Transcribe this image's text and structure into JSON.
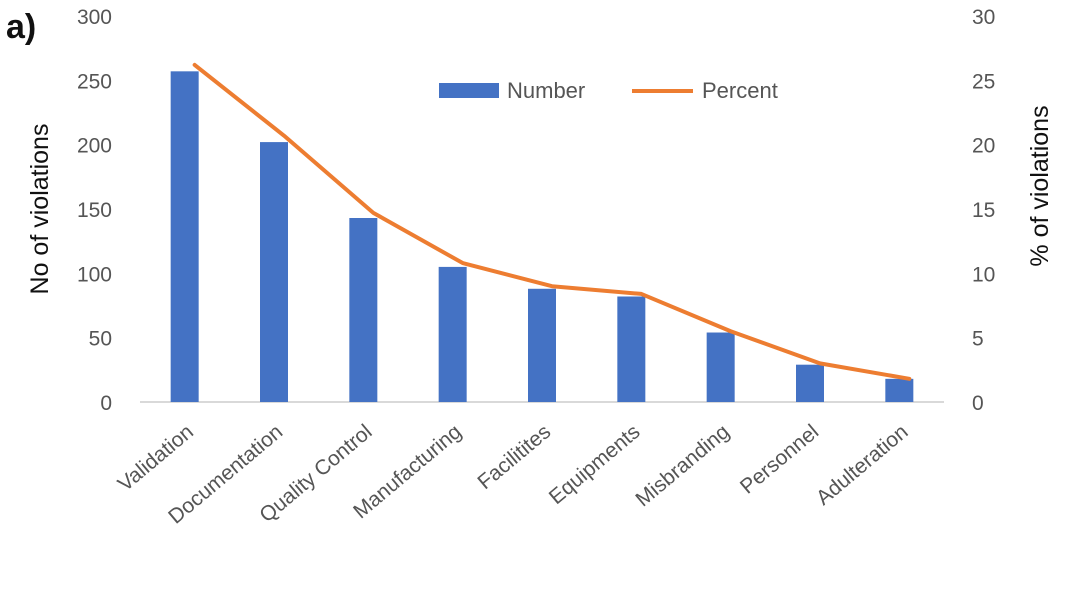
{
  "panel_label": "a)",
  "chart_data": {
    "type": "bar",
    "categories": [
      "Validation",
      "Documentation",
      "Quality Control",
      "Manufacturing",
      "Facilitites",
      "Equipments",
      "Misbranding",
      "Personnel",
      "Adulteration"
    ],
    "series": [
      {
        "name": "Number",
        "type": "bar",
        "axis": "left",
        "color": "#4472c4",
        "values": [
          257,
          202,
          143,
          105,
          88,
          82,
          54,
          29,
          18
        ]
      },
      {
        "name": "Percent",
        "type": "line",
        "axis": "right",
        "color": "#ed7d31",
        "values": [
          26.2,
          20.7,
          14.7,
          10.8,
          9.0,
          8.4,
          5.5,
          3.0,
          1.8
        ]
      }
    ],
    "ylabel": "No of violations",
    "y2label": "% of violations",
    "ylim": [
      0,
      300
    ],
    "y2lim": [
      0,
      30
    ],
    "yticks": [
      "0",
      "50",
      "100",
      "150",
      "200",
      "250",
      "300"
    ],
    "y2ticks": [
      "0",
      "5",
      "10",
      "15",
      "20",
      "25",
      "30"
    ],
    "legend_position": "top-right",
    "grid": false
  }
}
